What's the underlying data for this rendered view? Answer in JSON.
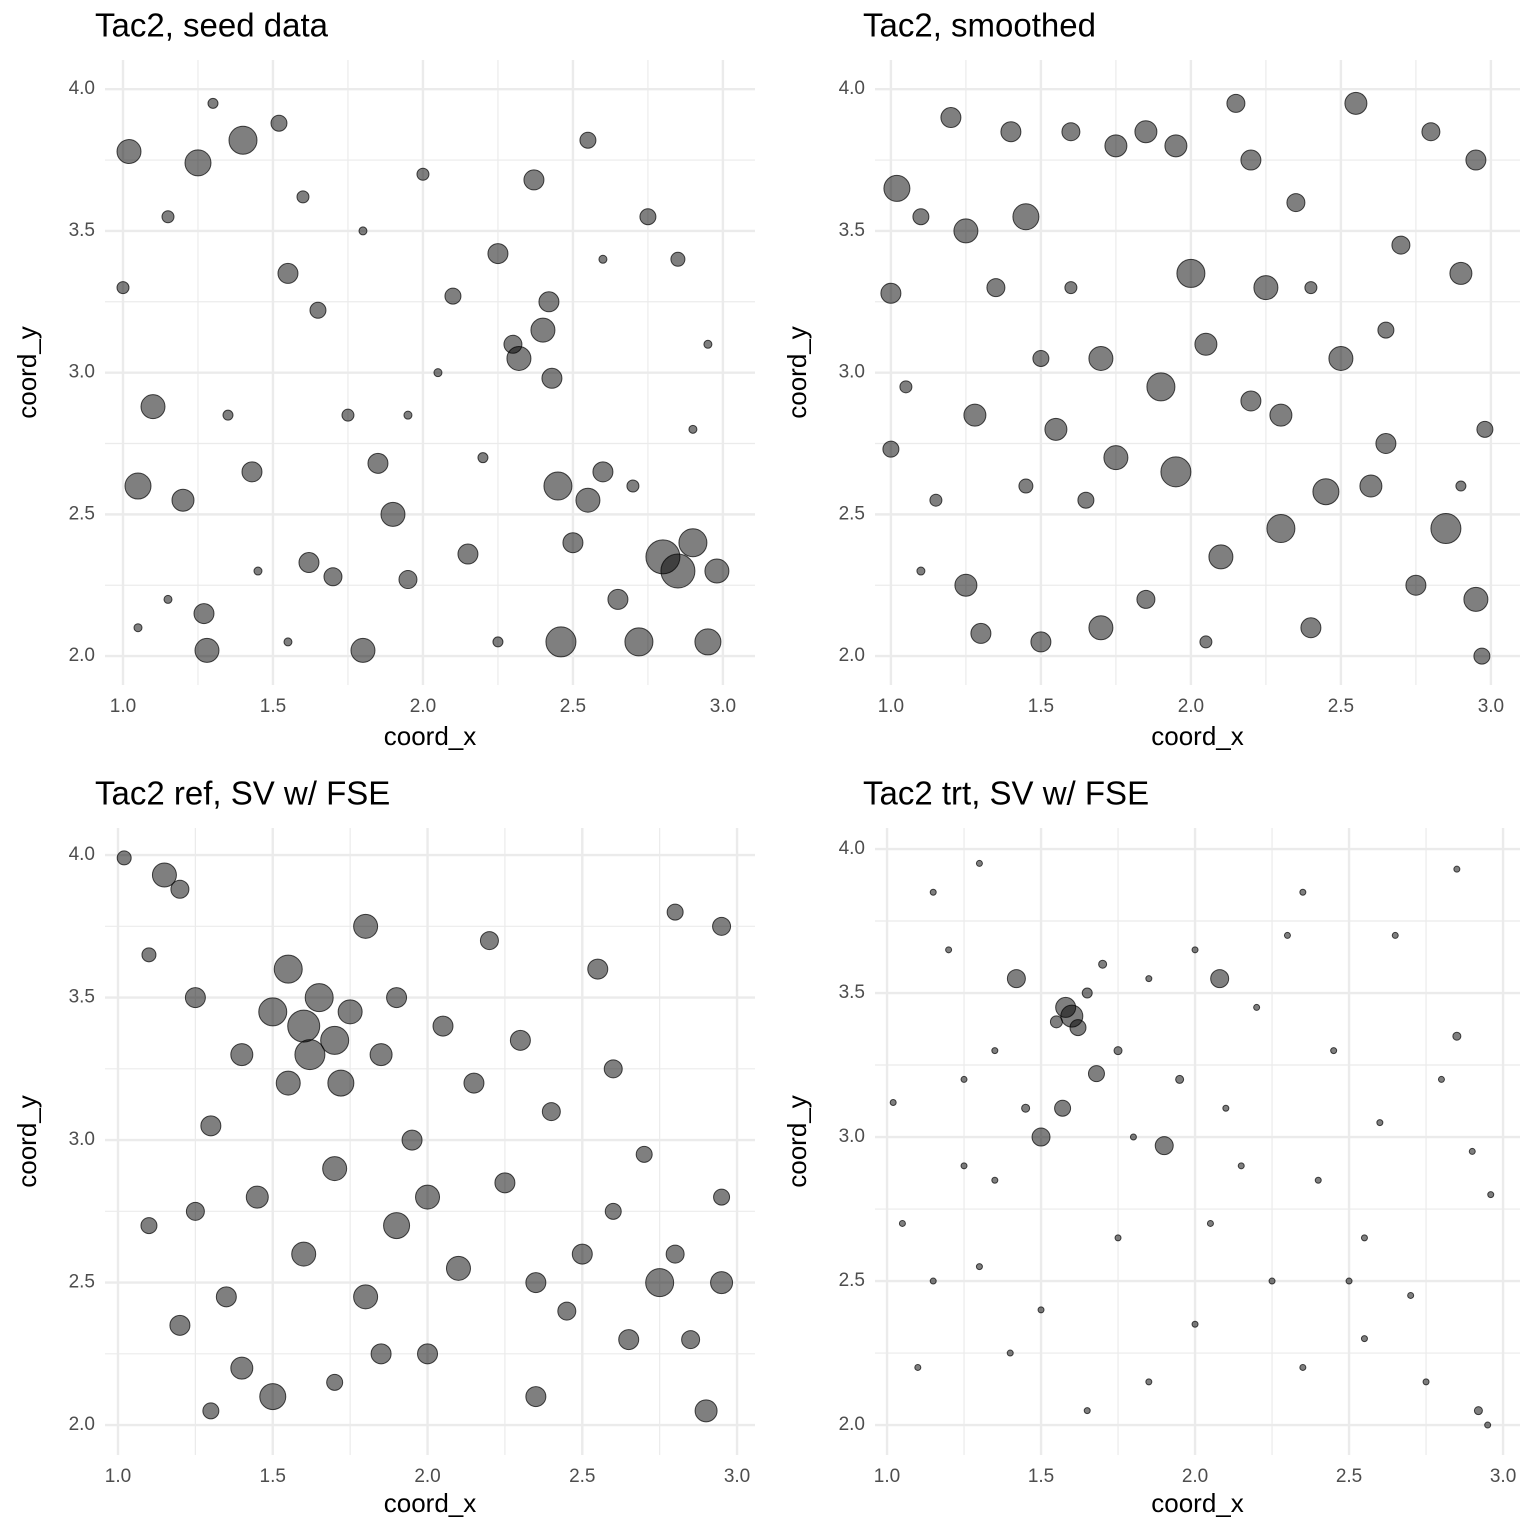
{
  "chart_data": [
    {
      "type": "scatter",
      "title": "Tac2, seed data",
      "x_label": "coord_x",
      "y_label": "coord_y",
      "color": "#000000",
      "alpha": 0.5,
      "grid": true,
      "xlim": [
        0.94,
        3.107
      ],
      "ylim": [
        1.898,
        4.103
      ],
      "xticks": [
        {
          "value": 1,
          "label": "1.0"
        },
        1.5,
        {
          "value": 2,
          "label": "2.0"
        },
        2.5,
        {
          "value": 3,
          "label": "3.0"
        }
      ],
      "yticks": [
        {
          "value": 2,
          "label": "2.0"
        },
        2.5,
        {
          "value": 3,
          "label": "3.0"
        },
        3.5,
        {
          "value": 4,
          "label": "4.0"
        }
      ],
      "x": [
        1.02,
        1.05,
        1.1,
        1.2,
        1.28,
        1.27,
        1.25,
        1.4,
        1.43,
        1.52,
        1.55,
        1.62,
        1.7,
        1.65,
        1.8,
        1.85,
        1.9,
        1.95,
        2.0,
        2.1,
        2.15,
        2.25,
        2.3,
        2.32,
        2.37,
        2.4,
        2.42,
        2.43,
        2.45,
        2.46,
        2.5,
        2.55,
        2.6,
        2.55,
        2.65,
        2.72,
        2.8,
        2.85,
        2.9,
        2.95,
        2.98,
        2.75,
        2.85,
        1.0,
        1.15,
        1.35,
        1.6,
        1.75,
        2.05,
        2.2,
        1.45,
        1.15,
        2.7,
        2.9,
        1.3,
        2.25,
        1.8,
        2.6,
        1.95,
        1.05,
        2.95,
        1.55
      ],
      "values": [
        3.78,
        2.6,
        2.88,
        2.55,
        2.02,
        2.15,
        3.74,
        3.82,
        2.65,
        3.88,
        3.35,
        2.33,
        2.28,
        3.22,
        2.02,
        2.68,
        2.5,
        2.27,
        3.7,
        3.27,
        2.36,
        3.42,
        3.1,
        3.05,
        3.68,
        3.15,
        3.25,
        2.98,
        2.6,
        2.05,
        2.4,
        2.55,
        2.65,
        3.82,
        2.2,
        2.05,
        2.35,
        2.3,
        2.4,
        2.05,
        2.3,
        3.55,
        3.4,
        3.3,
        3.55,
        2.85,
        3.62,
        2.85,
        3.0,
        2.7,
        2.3,
        2.2,
        2.6,
        2.8,
        3.95,
        2.05,
        3.5,
        3.4,
        2.85,
        2.1,
        3.1,
        2.05
      ],
      "sizes": [
        12,
        13,
        12,
        11,
        12,
        10,
        13,
        14,
        10,
        8,
        10,
        10,
        9,
        8,
        12,
        10,
        12,
        9,
        6,
        8,
        10,
        10,
        9,
        12,
        10,
        12,
        10,
        10,
        14,
        15,
        10,
        12,
        10,
        8,
        10,
        14,
        17,
        17,
        14,
        13,
        12,
        8,
        7,
        6,
        6,
        5,
        6,
        6,
        4,
        5,
        4,
        4,
        6,
        4,
        5,
        5,
        4,
        4,
        4,
        4,
        4,
        4
      ]
    },
    {
      "type": "scatter",
      "title": "Tac2, smoothed",
      "x_label": "coord_x",
      "y_label": "coord_y",
      "color": "#000000",
      "alpha": 0.5,
      "grid": true,
      "xlim": [
        0.947,
        3.097
      ],
      "ylim": [
        1.898,
        4.103
      ],
      "xticks": [
        {
          "value": 1,
          "label": "1.0"
        },
        1.5,
        {
          "value": 2,
          "label": "2.0"
        },
        2.5,
        {
          "value": 3,
          "label": "3.0"
        }
      ],
      "yticks": [
        {
          "value": 2,
          "label": "2.0"
        },
        2.5,
        {
          "value": 3,
          "label": "3.0"
        },
        3.5,
        {
          "value": 4,
          "label": "4.0"
        }
      ],
      "x": [
        1.02,
        1.0,
        1.0,
        1.05,
        1.1,
        1.2,
        1.25,
        1.28,
        1.3,
        1.25,
        1.4,
        1.45,
        1.45,
        1.5,
        1.5,
        1.55,
        1.6,
        1.65,
        1.7,
        1.75,
        1.75,
        1.85,
        1.9,
        1.95,
        1.95,
        2.0,
        2.05,
        2.1,
        2.2,
        2.2,
        2.25,
        2.3,
        2.3,
        2.35,
        2.4,
        2.45,
        2.5,
        2.55,
        2.6,
        2.65,
        2.7,
        2.75,
        2.8,
        2.85,
        2.9,
        2.95,
        2.95,
        2.97,
        2.98,
        1.15,
        1.35,
        2.15,
        1.6,
        2.4,
        2.65,
        1.85,
        2.05,
        1.1,
        2.9,
        1.7
      ],
      "values": [
        3.65,
        3.28,
        2.73,
        2.95,
        3.55,
        3.9,
        3.5,
        2.85,
        2.08,
        2.25,
        3.85,
        3.55,
        2.6,
        2.05,
        3.05,
        2.8,
        3.85,
        2.55,
        3.05,
        2.7,
        3.8,
        3.85,
        2.95,
        2.65,
        3.8,
        3.35,
        3.1,
        2.35,
        3.75,
        2.9,
        3.3,
        2.45,
        2.85,
        3.6,
        2.1,
        2.58,
        3.05,
        3.95,
        2.6,
        2.75,
        3.45,
        2.25,
        3.85,
        2.45,
        3.35,
        2.2,
        3.75,
        2.0,
        2.8,
        2.55,
        3.3,
        3.95,
        3.3,
        3.3,
        3.15,
        2.2,
        2.05,
        2.3,
        2.6,
        2.1
      ],
      "sizes": [
        13,
        10,
        8,
        6,
        8,
        10,
        12,
        11,
        10,
        11,
        10,
        13,
        7,
        10,
        8,
        11,
        9,
        8,
        12,
        12,
        11,
        11,
        14,
        15,
        11,
        14,
        11,
        12,
        10,
        10,
        12,
        14,
        11,
        9,
        10,
        13,
        12,
        11,
        11,
        10,
        9,
        10,
        9,
        15,
        11,
        12,
        10,
        8,
        8,
        6,
        9,
        9,
        6,
        6,
        8,
        9,
        6,
        4,
        5,
        12
      ]
    },
    {
      "type": "scatter",
      "title": "Tac2 ref, SV w/ FSE",
      "x_label": "coord_x",
      "y_label": "coord_y",
      "color": "#000000",
      "alpha": 0.5,
      "grid": true,
      "xlim": [
        0.958,
        3.058
      ],
      "ylim": [
        1.895,
        4.095
      ],
      "xticks": [
        {
          "value": 1,
          "label": "1.0"
        },
        1.5,
        {
          "value": 2,
          "label": "2.0"
        },
        2.5,
        {
          "value": 3,
          "label": "3.0"
        }
      ],
      "yticks": [
        {
          "value": 2,
          "label": "2.0"
        },
        2.5,
        {
          "value": 3,
          "label": "3.0"
        },
        3.5,
        {
          "value": 4,
          "label": "4.0"
        }
      ],
      "x": [
        1.02,
        1.15,
        1.2,
        1.1,
        1.25,
        1.3,
        1.4,
        1.5,
        1.55,
        1.6,
        1.62,
        1.65,
        1.7,
        1.72,
        1.55,
        1.75,
        1.8,
        1.85,
        1.9,
        1.95,
        2.0,
        2.05,
        2.1,
        2.15,
        2.2,
        2.25,
        2.3,
        2.35,
        2.4,
        2.45,
        2.5,
        2.55,
        2.6,
        2.65,
        2.7,
        2.75,
        2.8,
        2.85,
        2.9,
        2.95,
        2.95,
        1.5,
        1.4,
        1.3,
        1.2,
        1.1,
        1.35,
        1.45,
        1.6,
        1.7,
        1.8,
        1.9,
        2.0,
        1.25,
        1.85,
        2.35,
        2.6,
        2.8,
        2.95,
        1.7
      ],
      "values": [
        3.99,
        3.93,
        3.88,
        3.65,
        3.5,
        3.05,
        3.3,
        3.45,
        3.6,
        3.4,
        3.3,
        3.5,
        3.35,
        3.2,
        3.2,
        3.45,
        3.75,
        3.3,
        3.5,
        3.0,
        2.8,
        3.4,
        2.55,
        3.2,
        3.7,
        2.85,
        3.35,
        2.5,
        3.1,
        2.4,
        2.6,
        3.6,
        3.25,
        2.3,
        2.95,
        2.5,
        3.8,
        2.3,
        2.05,
        2.5,
        3.75,
        2.1,
        2.2,
        2.05,
        2.35,
        2.7,
        2.45,
        2.8,
        2.6,
        2.9,
        2.45,
        2.7,
        2.25,
        2.75,
        2.25,
        2.1,
        2.75,
        2.6,
        2.8,
        2.15
      ],
      "sizes": [
        7,
        12,
        9,
        7,
        10,
        10,
        11,
        14,
        14,
        16,
        15,
        14,
        14,
        13,
        12,
        12,
        12,
        11,
        10,
        10,
        12,
        10,
        12,
        10,
        9,
        10,
        10,
        10,
        9,
        9,
        10,
        10,
        9,
        10,
        8,
        14,
        8,
        9,
        11,
        11,
        9,
        13,
        11,
        8,
        10,
        8,
        10,
        11,
        12,
        12,
        12,
        13,
        10,
        9,
        10,
        10,
        8,
        9,
        8,
        8
      ]
    },
    {
      "type": "scatter",
      "title": "Tac2 trt, SV w/ FSE",
      "x_label": "coord_x",
      "y_label": "coord_y",
      "color": "#000000",
      "alpha": 0.5,
      "grid": true,
      "xlim": [
        0.961,
        3.055
      ],
      "ylim": [
        1.896,
        4.073
      ],
      "xticks": [
        {
          "value": 1,
          "label": "1.0"
        },
        1.5,
        {
          "value": 2,
          "label": "2.0"
        },
        2.5,
        {
          "value": 3,
          "label": "3.0"
        }
      ],
      "yticks": [
        {
          "value": 2,
          "label": "2.0"
        },
        2.5,
        {
          "value": 3,
          "label": "3.0"
        },
        3.5,
        {
          "value": 4,
          "label": "4.0"
        }
      ],
      "x": [
        1.02,
        1.05,
        1.1,
        1.15,
        1.2,
        1.25,
        1.3,
        1.35,
        1.42,
        1.45,
        1.5,
        1.55,
        1.58,
        1.6,
        1.62,
        1.65,
        1.57,
        1.68,
        1.7,
        1.75,
        1.8,
        1.85,
        1.9,
        1.95,
        2.0,
        2.05,
        2.08,
        2.1,
        2.15,
        2.2,
        2.25,
        2.3,
        2.35,
        2.4,
        2.45,
        2.5,
        2.55,
        2.6,
        2.65,
        2.7,
        2.75,
        2.8,
        2.85,
        2.9,
        2.92,
        2.95,
        2.96,
        1.3,
        1.4,
        1.5,
        1.65,
        1.75,
        1.85,
        1.25,
        1.15,
        2.55,
        2.35,
        2.85,
        2.0,
        1.35
      ],
      "values": [
        3.12,
        2.7,
        2.2,
        3.85,
        3.65,
        2.9,
        3.95,
        3.3,
        3.55,
        3.1,
        3.0,
        3.4,
        3.45,
        3.42,
        3.38,
        3.5,
        3.1,
        3.22,
        3.6,
        3.3,
        3.0,
        3.55,
        2.97,
        3.2,
        3.65,
        2.7,
        3.55,
        3.1,
        2.9,
        3.45,
        2.5,
        3.7,
        2.2,
        2.85,
        3.3,
        2.5,
        2.3,
        3.05,
        3.7,
        2.45,
        2.15,
        3.2,
        3.35,
        2.95,
        2.05,
        2.0,
        2.8,
        2.55,
        2.25,
        2.4,
        2.05,
        2.65,
        2.15,
        3.2,
        2.5,
        2.65,
        3.85,
        3.93,
        2.35,
        2.85
      ],
      "sizes": [
        3,
        3,
        3,
        3,
        3,
        3,
        3,
        3,
        9,
        4,
        9,
        6,
        10,
        11,
        8,
        5,
        8,
        8,
        4,
        4,
        3,
        3,
        9,
        4,
        3,
        3,
        9,
        3,
        3,
        3,
        3,
        3,
        3,
        3,
        3,
        3,
        3,
        3,
        3,
        3,
        3,
        3,
        4,
        3,
        4,
        3,
        3,
        3,
        3,
        3,
        3,
        3,
        3,
        3,
        3,
        3,
        3,
        3,
        3,
        3
      ]
    }
  ]
}
